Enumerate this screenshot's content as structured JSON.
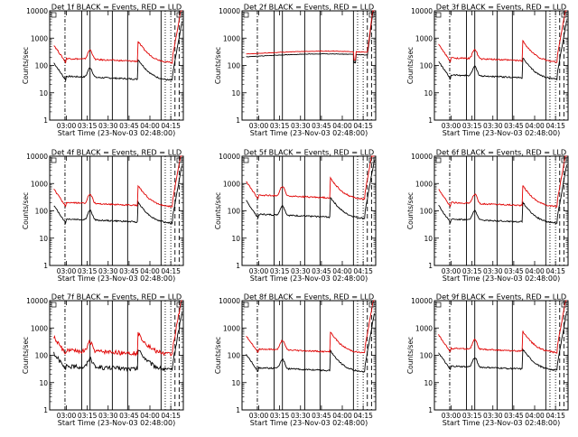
{
  "figure": {
    "xlabel_prefix": "Start Time",
    "start_time_label": "(23-Nov-03 02:48:00)",
    "ylabel": "Counts/sec",
    "legend_black": "BLACK = Events",
    "legend_red": "RED = LLD",
    "colors": {
      "black_series": "#000000",
      "red_series": "#e00000"
    }
  },
  "chart_data": [
    {
      "type": "line",
      "title": "Det 1f BLACK = Events, RED = LLD",
      "xlabel": "Start Time (23-Nov-03 02:48:00)",
      "ylabel": "Counts/sec",
      "yscale": "log",
      "ylim": [
        1,
        10000
      ],
      "x_ticks": [
        "03:00",
        "03:15",
        "03:30",
        "03:45",
        "04:00",
        "04:15"
      ],
      "y_ticks": [
        "1",
        "10",
        "100",
        "1000",
        "10000"
      ],
      "series": [
        {
          "name": "Events",
          "color": "#000000",
          "profile": "flare",
          "base": 40
        },
        {
          "name": "LLD",
          "color": "#e00000",
          "profile": "flare",
          "base": 180
        }
      ],
      "solid_markers": [
        "03:11",
        "03:17",
        "03:33",
        "03:44",
        "04:08"
      ],
      "dotted_markers": [
        "04:11",
        "04:15"
      ],
      "dashed_markers": [
        "04:18",
        "04:21"
      ]
    },
    {
      "type": "line",
      "title": "Det 2f BLACK = Events, RED = LLD",
      "xlabel": "Start Time (23-Nov-03 02:48:00)",
      "ylabel": "Counts/sec",
      "yscale": "log",
      "ylim": [
        1,
        10000
      ],
      "x_ticks": [
        "03:00",
        "03:15",
        "03:30",
        "03:45",
        "04:00",
        "04:15"
      ],
      "y_ticks": [
        "1",
        "10",
        "100",
        "1000",
        "10000"
      ],
      "series": [
        {
          "name": "Events",
          "color": "#000000",
          "profile": "flat",
          "base": 230
        },
        {
          "name": "LLD",
          "color": "#e00000",
          "profile": "flat",
          "base": 290
        }
      ],
      "solid_markers": [
        "03:11",
        "03:17",
        "03:33",
        "03:44",
        "04:08"
      ],
      "dotted_markers": [
        "04:11",
        "04:15"
      ],
      "dashed_markers": [
        "04:18",
        "04:21"
      ]
    },
    {
      "type": "line",
      "title": "Det 3f BLACK = Events, RED = LLD",
      "xlabel": "Start Time (23-Nov-03 02:48:00)",
      "ylabel": "Counts/sec",
      "yscale": "log",
      "ylim": [
        1,
        10000
      ],
      "x_ticks": [
        "03:00",
        "03:15",
        "03:30",
        "03:45",
        "04:00",
        "04:15"
      ],
      "y_ticks": [
        "1",
        "10",
        "100",
        "1000",
        "10000"
      ],
      "series": [
        {
          "name": "Events",
          "color": "#000000",
          "profile": "flare",
          "base": 45
        },
        {
          "name": "LLD",
          "color": "#e00000",
          "profile": "flare",
          "base": 190
        }
      ],
      "solid_markers": [
        "03:11",
        "03:17",
        "03:33",
        "03:44",
        "04:08"
      ],
      "dotted_markers": [
        "04:11",
        "04:15"
      ],
      "dashed_markers": [
        "04:18",
        "04:21"
      ]
    },
    {
      "type": "line",
      "title": "Det 4f BLACK = Events, RED = LLD",
      "xlabel": "Start Time (23-Nov-03 02:48:00)",
      "ylabel": "Counts/sec",
      "yscale": "log",
      "ylim": [
        1,
        10000
      ],
      "x_ticks": [
        "03:00",
        "03:15",
        "03:30",
        "03:45",
        "04:00",
        "04:15"
      ],
      "y_ticks": [
        "1",
        "10",
        "100",
        "1000",
        "10000"
      ],
      "series": [
        {
          "name": "Events",
          "color": "#000000",
          "profile": "flare",
          "base": 50
        },
        {
          "name": "LLD",
          "color": "#e00000",
          "profile": "flare",
          "base": 200
        }
      ],
      "solid_markers": [
        "03:11",
        "03:17",
        "03:33",
        "03:44",
        "04:08"
      ],
      "dotted_markers": [
        "04:11",
        "04:15"
      ],
      "dashed_markers": [
        "04:18",
        "04:21"
      ]
    },
    {
      "type": "line",
      "title": "Det 5f BLACK = Events, RED = LLD",
      "xlabel": "Start Time (23-Nov-03 02:48:00)",
      "ylabel": "Counts/sec",
      "yscale": "log",
      "ylim": [
        1,
        10000
      ],
      "x_ticks": [
        "03:00",
        "03:15",
        "03:30",
        "03:45",
        "04:00",
        "04:15"
      ],
      "y_ticks": [
        "1",
        "10",
        "100",
        "1000",
        "10000"
      ],
      "series": [
        {
          "name": "Events",
          "color": "#000000",
          "profile": "flare",
          "base": 75
        },
        {
          "name": "LLD",
          "color": "#e00000",
          "profile": "flare",
          "base": 380
        }
      ],
      "solid_markers": [
        "03:11",
        "03:17",
        "03:33",
        "03:44",
        "04:08"
      ],
      "dotted_markers": [
        "04:11",
        "04:15"
      ],
      "dashed_markers": [
        "04:18",
        "04:21"
      ]
    },
    {
      "type": "line",
      "title": "Det 6f BLACK = Events, RED = LLD",
      "xlabel": "Start Time (23-Nov-03 02:48:00)",
      "ylabel": "Counts/sec",
      "yscale": "log",
      "ylim": [
        1,
        10000
      ],
      "x_ticks": [
        "03:00",
        "03:15",
        "03:30",
        "03:45",
        "04:00",
        "04:15"
      ],
      "y_ticks": [
        "1",
        "10",
        "100",
        "1000",
        "10000"
      ],
      "series": [
        {
          "name": "Events",
          "color": "#000000",
          "profile": "flare",
          "base": 50
        },
        {
          "name": "LLD",
          "color": "#e00000",
          "profile": "flare",
          "base": 200
        }
      ],
      "solid_markers": [
        "03:11",
        "03:17",
        "03:33",
        "03:44",
        "04:08"
      ],
      "dotted_markers": [
        "04:11",
        "04:15"
      ],
      "dashed_markers": [
        "04:18",
        "04:21"
      ]
    },
    {
      "type": "line",
      "title": "Det 7f BLACK = Events, RED = LLD",
      "xlabel": "Start Time (23-Nov-03 02:48:00)",
      "ylabel": "Counts/sec",
      "yscale": "log",
      "ylim": [
        1,
        10000
      ],
      "x_ticks": [
        "03:00",
        "03:15",
        "03:30",
        "03:45",
        "04:00",
        "04:15"
      ],
      "y_ticks": [
        "1",
        "10",
        "100",
        "1000",
        "10000"
      ],
      "series": [
        {
          "name": "Events",
          "color": "#000000",
          "profile": "noisy",
          "base": 40
        },
        {
          "name": "LLD",
          "color": "#e00000",
          "profile": "noisy",
          "base": 150
        }
      ],
      "solid_markers": [
        "03:11",
        "03:17",
        "03:33",
        "03:44",
        "04:08"
      ],
      "dotted_markers": [
        "04:11",
        "04:15"
      ],
      "dashed_markers": [
        "04:18",
        "04:21"
      ]
    },
    {
      "type": "line",
      "title": "Det 8f BLACK = Events, RED = LLD",
      "xlabel": "Start Time (23-Nov-03 02:48:00)",
      "ylabel": "Counts/sec",
      "yscale": "log",
      "ylim": [
        1,
        10000
      ],
      "x_ticks": [
        "03:00",
        "03:15",
        "03:30",
        "03:45",
        "04:00",
        "04:15"
      ],
      "y_ticks": [
        "1",
        "10",
        "100",
        "1000",
        "10000"
      ],
      "series": [
        {
          "name": "Events",
          "color": "#000000",
          "profile": "flare",
          "base": 35
        },
        {
          "name": "LLD",
          "color": "#e00000",
          "profile": "flare",
          "base": 170
        }
      ],
      "solid_markers": [
        "03:11",
        "03:17",
        "03:33",
        "03:44",
        "04:08"
      ],
      "dotted_markers": [
        "04:11",
        "04:15"
      ],
      "dashed_markers": [
        "04:18",
        "04:21"
      ]
    },
    {
      "type": "line",
      "title": "Det 9f BLACK = Events, RED = LLD",
      "xlabel": "Start Time (23-Nov-03 02:48:00)",
      "ylabel": "Counts/sec",
      "yscale": "log",
      "ylim": [
        1,
        10000
      ],
      "x_ticks": [
        "03:00",
        "03:15",
        "03:30",
        "03:45",
        "04:00",
        "04:15"
      ],
      "y_ticks": [
        "1",
        "10",
        "100",
        "1000",
        "10000"
      ],
      "series": [
        {
          "name": "Events",
          "color": "#000000",
          "profile": "flare",
          "base": 40
        },
        {
          "name": "LLD",
          "color": "#e00000",
          "profile": "flare",
          "base": 180
        }
      ],
      "solid_markers": [
        "03:11",
        "03:17",
        "03:33",
        "03:44",
        "04:08"
      ],
      "dotted_markers": [
        "04:11",
        "04:15"
      ],
      "dashed_markers": [
        "04:18",
        "04:21"
      ]
    }
  ]
}
